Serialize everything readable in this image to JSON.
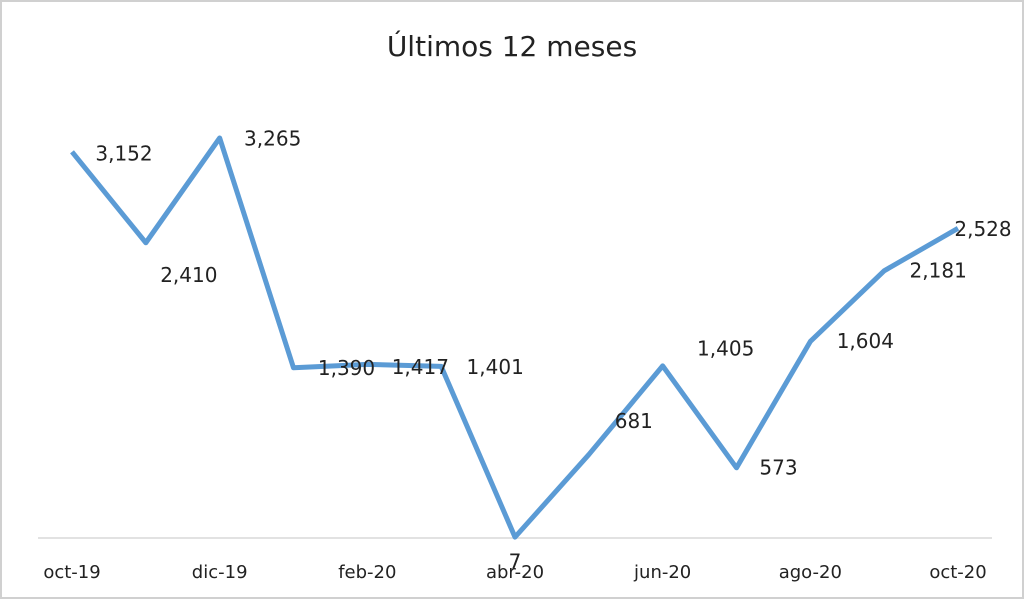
{
  "chart_data": {
    "type": "line",
    "title": "Últimos 12 meses",
    "categories": [
      "oct-19",
      null,
      "dic-19",
      null,
      "feb-20",
      null,
      "abr-20",
      null,
      "jun-20",
      null,
      "ago-20",
      null,
      "oct-20"
    ],
    "series": [
      {
        "name": null,
        "color": "#5b9bd5",
        "values": [
          3152,
          2410,
          3265,
          1390,
          1417,
          1401,
          7,
          681,
          1405,
          573,
          1604,
          2181,
          2528
        ],
        "value_labels": [
          "3,152",
          "2,410",
          "3,265",
          "1,390",
          "1,417",
          "1,401",
          "7",
          "681",
          "1,405",
          "573",
          "1,604",
          "2,181",
          "2,528"
        ]
      }
    ]
  }
}
